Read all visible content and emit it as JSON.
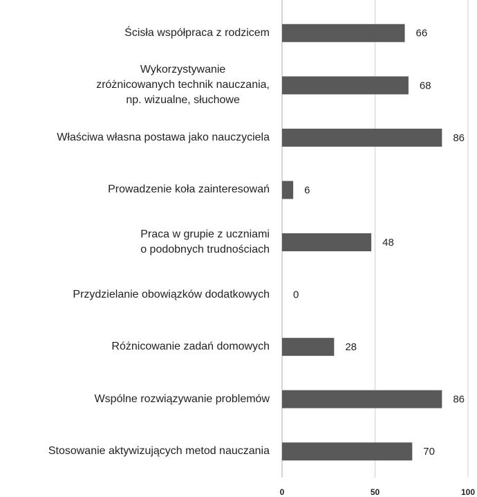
{
  "chart_data": {
    "type": "bar",
    "orientation": "horizontal",
    "categories": [
      "Ścisła współpraca z rodzicem",
      "Wykorzystywanie\nzróżnicowanych technik nauczania,\nnp. wizualne, słuchowe",
      "Właściwa własna postawa jako nauczyciela",
      "Prowadzenie koła zainteresowań",
      "Praca w grupie z uczniami\no podobnych trudnościach",
      "Przydzielanie obowiązków dodatkowych",
      "Różnicowanie zadań domowych",
      "Wspólne rozwiązywanie problemów",
      "Stosowanie aktywizujących metod nauczania"
    ],
    "values": [
      66,
      68,
      86,
      6,
      48,
      0,
      28,
      86,
      70
    ],
    "color": "#595959",
    "xlim": [
      0,
      100
    ],
    "xticks": [
      0,
      50,
      100
    ],
    "grid": true
  }
}
